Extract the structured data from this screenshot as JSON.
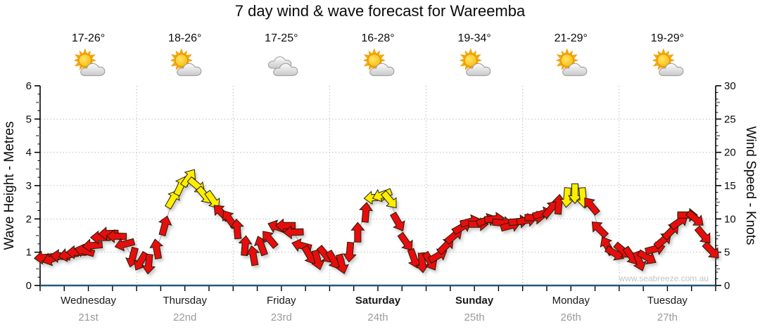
{
  "title": "7 day wind & wave forecast for Wareemba",
  "watermark": "www.seabreeze.com.au",
  "colors": {
    "arrow_red": "#e81111",
    "arrow_yellow": "#ffee00",
    "arrow_outline": "#221a05",
    "series_line": "#b3b3b3",
    "grid": "#bdbdbd",
    "axis": "#000000",
    "axis_bottom_blue": "#24587c",
    "date_gray": "#9a9a9a",
    "watermark_gray": "#c3c3c3"
  },
  "chart_data": {
    "type": "line",
    "subtype": "wind-arrow-forecast",
    "title": "7 day wind & wave forecast for Wareemba",
    "points_per_day": 12,
    "interval_hours": 2,
    "arrow_color_rule": "arrow is yellow when wind speed >= 12.5 knots, otherwise red",
    "legend": "none",
    "left_axis": {
      "label": "Wave Height - Metres",
      "range": [
        0,
        6
      ],
      "major_ticks": [
        0,
        1,
        2,
        3,
        4,
        5,
        6
      ],
      "gridlines": [
        1,
        2,
        3,
        4,
        5
      ],
      "grid_style": "dotted"
    },
    "right_axis": {
      "label": "Wind Speed - Knots",
      "range": [
        0,
        30
      ],
      "major_ticks": [
        0,
        5,
        10,
        15,
        20,
        25,
        30
      ]
    },
    "days": [
      {
        "name": "Wednesday",
        "date": "21st",
        "temp_range": "17-26°",
        "icon": "partly-sunny",
        "weekend": false,
        "wind_speed_knots": [
          4.2,
          4.0,
          4.4,
          4.6,
          5.0,
          5.2,
          6.0,
          7.2,
          7.8,
          7.4,
          6.2,
          4.2
        ],
        "wind_direction_deg": [
          265,
          250,
          275,
          260,
          270,
          285,
          265,
          270,
          268,
          272,
          255,
          195
        ]
      },
      {
        "name": "Thursday",
        "date": "22nd",
        "temp_range": "18-26°",
        "icon": "partly-sunny",
        "weekend": false,
        "wind_speed_knots": [
          3.6,
          3.2,
          5.5,
          9.0,
          13.0,
          15.0,
          16.2,
          15.0,
          13.5,
          12.8,
          11.0,
          10.0
        ],
        "wind_direction_deg": [
          210,
          185,
          350,
          15,
          30,
          25,
          35,
          130,
          140,
          145,
          315,
          325
        ]
      },
      {
        "name": "Friday",
        "date": "23rd",
        "temp_range": "17-25°",
        "icon": "cloudy",
        "weekend": false,
        "wind_speed_knots": [
          8.5,
          6.0,
          4.5,
          6.0,
          7.0,
          8.8,
          9.0,
          8.0,
          6.0,
          4.5,
          3.8,
          4.6
        ],
        "wind_direction_deg": [
          355,
          5,
          350,
          340,
          320,
          290,
          270,
          268,
          285,
          150,
          165,
          140
        ]
      },
      {
        "name": "Saturday",
        "date": "24th",
        "temp_range": "16-28°",
        "icon": "partly-sunny",
        "weekend": true,
        "wind_speed_knots": [
          3.8,
          3.2,
          5.0,
          8.0,
          11.0,
          13.2,
          13.6,
          12.8,
          9.5,
          6.5,
          4.0,
          3.4
        ],
        "wind_direction_deg": [
          150,
          165,
          185,
          0,
          5,
          265,
          250,
          140,
          150,
          145,
          160,
          175
        ]
      },
      {
        "name": "Sunday",
        "date": "25th",
        "temp_range": "19-34°",
        "icon": "partly-sunny",
        "weekend": true,
        "wind_speed_knots": [
          3.6,
          4.5,
          6.0,
          7.5,
          8.8,
          9.6,
          9.2,
          9.8,
          10.0,
          9.4,
          9.0,
          9.6
        ],
        "wind_direction_deg": [
          150,
          60,
          45,
          50,
          60,
          75,
          90,
          70,
          85,
          95,
          75,
          85
        ]
      },
      {
        "name": "Monday",
        "date": "26th",
        "temp_range": "21-29°",
        "icon": "partly-sunny",
        "weekend": false,
        "wind_speed_knots": [
          9.8,
          10.2,
          10.8,
          11.5,
          12.2,
          13.2,
          13.8,
          13.2,
          12.0,
          8.5,
          6.0,
          4.8
        ],
        "wind_direction_deg": [
          80,
          90,
          75,
          40,
          5,
          185,
          180,
          175,
          320,
          315,
          330,
          120
        ]
      },
      {
        "name": "Tuesday",
        "date": "27th",
        "temp_range": "19-29°",
        "icon": "partly-sunny",
        "weekend": false,
        "wind_speed_knots": [
          5.2,
          4.4,
          3.6,
          4.2,
          5.5,
          6.8,
          8.2,
          9.6,
          10.6,
          10.0,
          7.5,
          5.2
        ],
        "wind_direction_deg": [
          130,
          145,
          160,
          120,
          75,
          50,
          45,
          55,
          90,
          130,
          140,
          135
        ]
      }
    ]
  }
}
